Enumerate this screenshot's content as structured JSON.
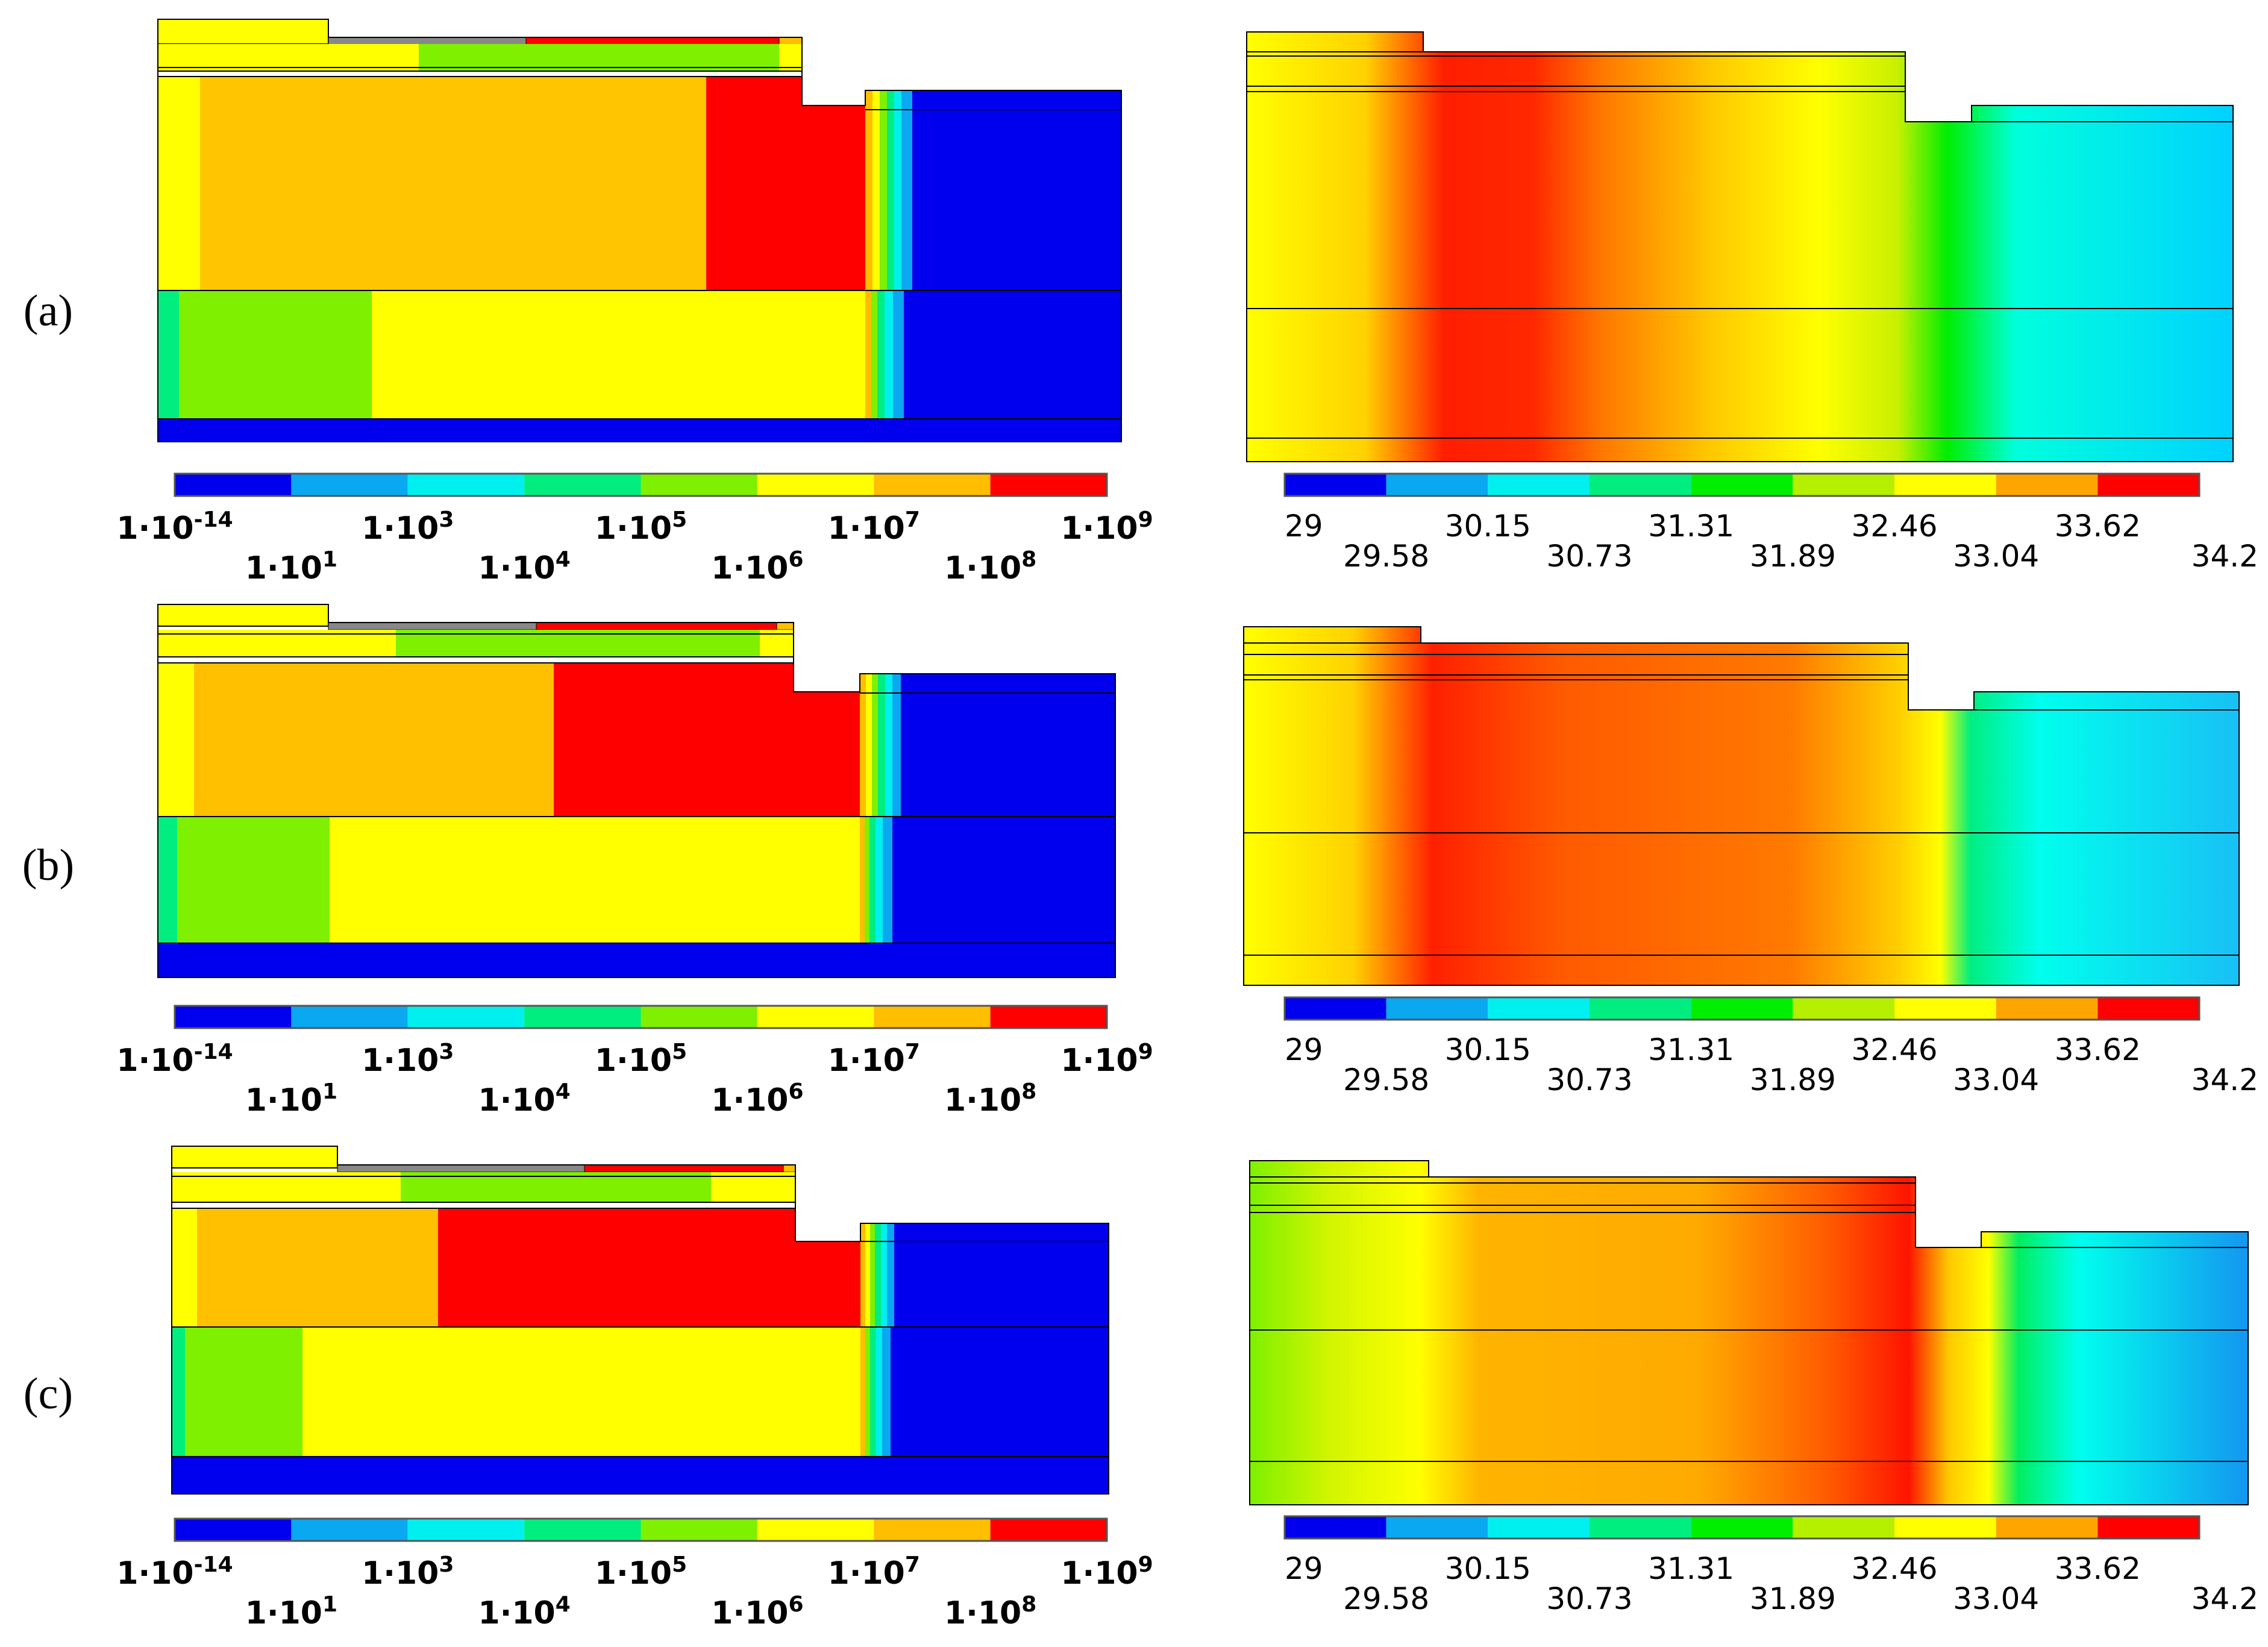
{
  "rows": [
    {
      "label": "(a)"
    },
    {
      "label": "(b)"
    },
    {
      "label": "(c)"
    }
  ],
  "left_legend": {
    "colors": [
      "#0000ee",
      "#0aa8f0",
      "#00f0f0",
      "#00ee80",
      "#7ef000",
      "#ffff00",
      "#ffbe00",
      "#ff0000"
    ],
    "ticks": [
      {
        "base": "1·10",
        "exp": "-14"
      },
      {
        "base": "1·10",
        "exp": "1"
      },
      {
        "base": "1·10",
        "exp": "3"
      },
      {
        "base": "1·10",
        "exp": "4"
      },
      {
        "base": "1·10",
        "exp": "5"
      },
      {
        "base": "1·10",
        "exp": "6"
      },
      {
        "base": "1·10",
        "exp": "7"
      },
      {
        "base": "1·10",
        "exp": "8"
      },
      {
        "base": "1·10",
        "exp": "9"
      }
    ]
  },
  "right_legend": {
    "colors": [
      "#0000ee",
      "#0aa8f0",
      "#00f0f0",
      "#00ee80",
      "#00ee00",
      "#b4f000",
      "#ffff00",
      "#ffa500",
      "#ff0000"
    ],
    "ticks": [
      "29",
      "29.58",
      "30.15",
      "30.73",
      "31.31",
      "31.89",
      "32.46",
      "33.04",
      "33.62",
      "34.2"
    ]
  }
}
